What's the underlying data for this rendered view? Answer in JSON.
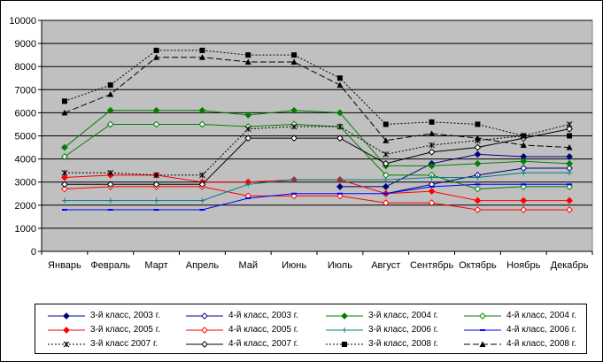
{
  "colors": {
    "plot_bg": "#c0c0c0",
    "grid": "#000000"
  },
  "chart_data": {
    "type": "line",
    "title": "",
    "xlabel": "",
    "ylabel": "",
    "ylim": [
      0,
      10000
    ],
    "yticks": [
      0,
      1000,
      2000,
      3000,
      4000,
      5000,
      6000,
      7000,
      8000,
      9000,
      10000
    ],
    "grid": "horizontal",
    "legend_position": "bottom",
    "categories": [
      "Январь",
      "Февраль",
      "Март",
      "Апрель",
      "Май",
      "Июнь",
      "Июль",
      "Август",
      "Сентябрь",
      "Октябрь",
      "Ноябрь",
      "Декабрь"
    ],
    "series": [
      {
        "name": "3-й класс, 2003 г.",
        "color": "#000080",
        "marker": "diamond",
        "dash": "",
        "values": [
          null,
          null,
          null,
          null,
          null,
          null,
          2800,
          2800,
          3800,
          4200,
          4100,
          4100
        ]
      },
      {
        "name": "4-й класс, 2003 г.",
        "color": "#000080",
        "marker": "diamond-open",
        "dash": "",
        "values": [
          null,
          null,
          null,
          null,
          null,
          null,
          null,
          2500,
          2900,
          3300,
          3600,
          3600
        ]
      },
      {
        "name": "3-й класс, 2004 г.",
        "color": "#008000",
        "marker": "diamond",
        "dash": "",
        "values": [
          4500,
          6100,
          6100,
          6100,
          5900,
          6100,
          6000,
          3700,
          3700,
          3800,
          3900,
          3800
        ]
      },
      {
        "name": "4-й класс, 2004 г.",
        "color": "#008000",
        "marker": "diamond-open",
        "dash": "",
        "values": [
          4100,
          5500,
          5500,
          5500,
          5400,
          5500,
          5400,
          3300,
          3300,
          2700,
          2800,
          2800
        ]
      },
      {
        "name": "3-й класс, 2005 г.",
        "color": "#ff0000",
        "marker": "diamond",
        "dash": "",
        "values": [
          3200,
          3300,
          3300,
          3000,
          3000,
          3100,
          3100,
          2500,
          2600,
          2200,
          2200,
          2200
        ]
      },
      {
        "name": "4-й класс, 2005 г.",
        "color": "#ff0000",
        "marker": "diamond-open",
        "dash": "",
        "values": [
          2700,
          2800,
          2800,
          2800,
          2400,
          2400,
          2400,
          2100,
          2100,
          1800,
          1800,
          1800
        ]
      },
      {
        "name": "3-й класс, 2006 г.",
        "color": "#008080",
        "marker": "plus",
        "dash": "",
        "values": [
          2200,
          2200,
          2200,
          2200,
          2900,
          3100,
          3100,
          3100,
          3200,
          3200,
          3400,
          3400
        ]
      },
      {
        "name": "4-й класс, 2006 г.",
        "color": "#0000ff",
        "marker": "dash",
        "dash": "",
        "values": [
          1800,
          1800,
          1800,
          1800,
          2300,
          2500,
          2500,
          2500,
          2800,
          2900,
          2900,
          2900
        ]
      },
      {
        "name": "3-й класс 2007 г.",
        "color": "#000000",
        "marker": "star",
        "dash": "2,2",
        "values": [
          3400,
          3400,
          3300,
          3300,
          5300,
          5400,
          5400,
          4200,
          4600,
          4800,
          5000,
          5500
        ]
      },
      {
        "name": "4-й класс, 2007 г.",
        "color": "#000000",
        "marker": "diamond-open",
        "dash": "",
        "values": [
          2900,
          2900,
          2900,
          2900,
          4900,
          4900,
          4900,
          3800,
          4300,
          4500,
          4900,
          5300
        ]
      },
      {
        "name": "3-й класс, 2008 г.",
        "color": "#000000",
        "marker": "square",
        "dash": "2,2",
        "values": [
          6500,
          7200,
          8700,
          8700,
          8500,
          8500,
          7500,
          5500,
          5600,
          5500,
          5000,
          5000
        ]
      },
      {
        "name": "4-й класс, 2008 г.",
        "color": "#000000",
        "marker": "triangle",
        "dash": "7,3",
        "values": [
          6000,
          6800,
          8400,
          8400,
          8200,
          8200,
          7200,
          4800,
          5100,
          4900,
          4600,
          4500
        ]
      }
    ]
  }
}
